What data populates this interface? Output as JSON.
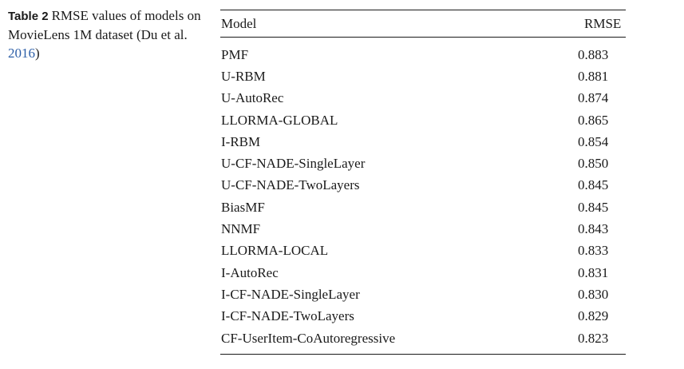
{
  "caption": {
    "label": "Table 2",
    "text": "RMSE values of models on MovieLens 1M dataset (Du et al. ",
    "year": "2016",
    "close": ")"
  },
  "table": {
    "headers": {
      "model": "Model",
      "rmse": "RMSE"
    },
    "rows": [
      {
        "model": "PMF",
        "rmse": "0.883"
      },
      {
        "model": "U-RBM",
        "rmse": "0.881"
      },
      {
        "model": "U-AutoRec",
        "rmse": "0.874"
      },
      {
        "model": "LLORMA-GLOBAL",
        "rmse": "0.865"
      },
      {
        "model": "I-RBM",
        "rmse": "0.854"
      },
      {
        "model": "U-CF-NADE-SingleLayer",
        "rmse": "0.850"
      },
      {
        "model": "U-CF-NADE-TwoLayers",
        "rmse": "0.845"
      },
      {
        "model": "BiasMF",
        "rmse": "0.845"
      },
      {
        "model": "NNMF",
        "rmse": "0.843"
      },
      {
        "model": "LLORMA-LOCAL",
        "rmse": "0.833"
      },
      {
        "model": "I-AutoRec",
        "rmse": "0.831"
      },
      {
        "model": "I-CF-NADE-SingleLayer",
        "rmse": "0.830"
      },
      {
        "model": "I-CF-NADE-TwoLayers",
        "rmse": "0.829"
      },
      {
        "model": "CF-UserItem-CoAutoregressive",
        "rmse": "0.823"
      }
    ]
  }
}
